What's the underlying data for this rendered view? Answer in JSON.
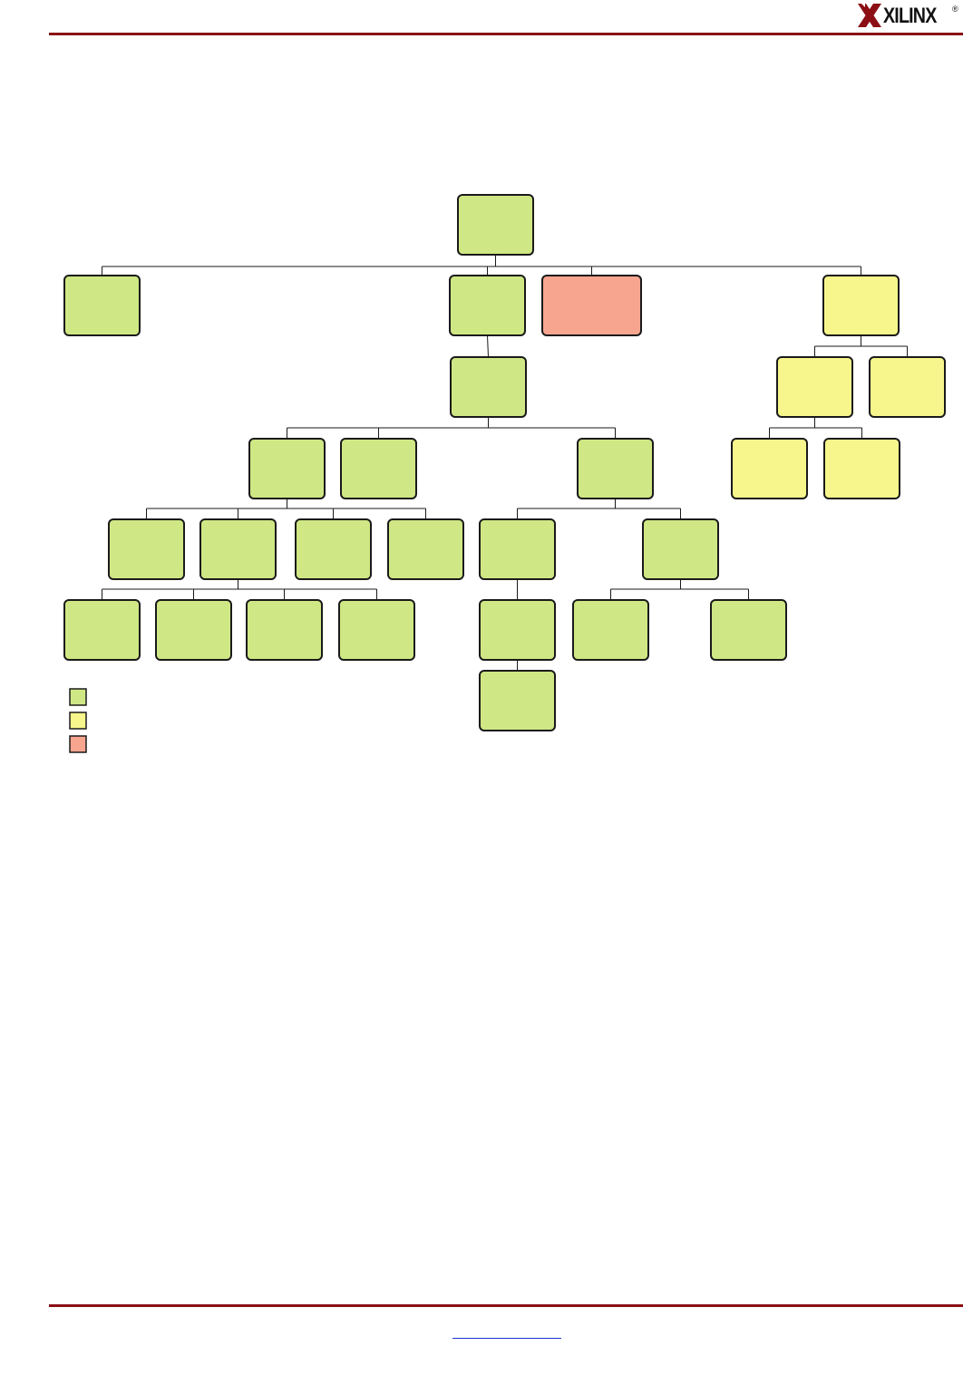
{
  "brand": {
    "logo_text": "XILINX",
    "logo_mark": "®",
    "rule_color": "#8b0f14"
  },
  "colors": {
    "green": "#cfe784",
    "yellow": "#f7f68c",
    "salmon": "#f7a58f",
    "line": "#1a1a1a"
  },
  "diagram": {
    "nodes": [
      {
        "id": "root",
        "color": "green",
        "label": ""
      },
      {
        "id": "l1-a",
        "color": "green",
        "label": ""
      },
      {
        "id": "l1-b",
        "color": "green",
        "label": ""
      },
      {
        "id": "l1-c",
        "color": "salmon",
        "label": ""
      },
      {
        "id": "l1-d",
        "color": "yellow",
        "label": ""
      },
      {
        "id": "l2-b1",
        "color": "green",
        "label": ""
      },
      {
        "id": "l2-d1",
        "color": "yellow",
        "label": ""
      },
      {
        "id": "l2-d2",
        "color": "yellow",
        "label": ""
      },
      {
        "id": "l3-b1",
        "color": "green",
        "label": ""
      },
      {
        "id": "l3-b2",
        "color": "green",
        "label": ""
      },
      {
        "id": "l3-b3",
        "color": "green",
        "label": ""
      },
      {
        "id": "l3-d1",
        "color": "yellow",
        "label": ""
      },
      {
        "id": "l3-d2",
        "color": "yellow",
        "label": ""
      },
      {
        "id": "l4-1",
        "color": "green",
        "label": ""
      },
      {
        "id": "l4-2",
        "color": "green",
        "label": ""
      },
      {
        "id": "l4-3",
        "color": "green",
        "label": ""
      },
      {
        "id": "l4-4",
        "color": "green",
        "label": ""
      },
      {
        "id": "l4-5",
        "color": "green",
        "label": ""
      },
      {
        "id": "l4-6",
        "color": "green",
        "label": ""
      },
      {
        "id": "l5-1",
        "color": "green",
        "label": ""
      },
      {
        "id": "l5-2",
        "color": "green",
        "label": ""
      },
      {
        "id": "l5-3",
        "color": "green",
        "label": ""
      },
      {
        "id": "l5-4",
        "color": "green",
        "label": ""
      },
      {
        "id": "l5-5",
        "color": "green",
        "label": ""
      },
      {
        "id": "l5-6",
        "color": "green",
        "label": ""
      },
      {
        "id": "l5-7",
        "color": "green",
        "label": ""
      },
      {
        "id": "l6-1",
        "color": "green",
        "label": ""
      }
    ],
    "edges": [
      [
        "root",
        "l1-a"
      ],
      [
        "root",
        "l1-b"
      ],
      [
        "root",
        "l1-c"
      ],
      [
        "root",
        "l1-d"
      ],
      [
        "l1-b",
        "l2-b1"
      ],
      [
        "l1-d",
        "l2-d1"
      ],
      [
        "l1-d",
        "l2-d2"
      ],
      [
        "l2-b1",
        "l3-b1"
      ],
      [
        "l2-b1",
        "l3-b2"
      ],
      [
        "l2-b1",
        "l3-b3"
      ],
      [
        "l2-d1",
        "l3-d1"
      ],
      [
        "l2-d1",
        "l3-d2"
      ],
      [
        "l3-b1",
        "l4-1"
      ],
      [
        "l3-b1",
        "l4-2"
      ],
      [
        "l3-b1",
        "l4-3"
      ],
      [
        "l3-b1",
        "l4-4"
      ],
      [
        "l3-b3",
        "l4-5"
      ],
      [
        "l3-b3",
        "l4-6"
      ],
      [
        "l4-2",
        "l5-1"
      ],
      [
        "l4-2",
        "l5-2"
      ],
      [
        "l4-2",
        "l5-3"
      ],
      [
        "l4-2",
        "l5-4"
      ],
      [
        "l4-5",
        "l5-5"
      ],
      [
        "l4-6",
        "l5-6"
      ],
      [
        "l4-6",
        "l5-7"
      ],
      [
        "l5-5",
        "l6-1"
      ]
    ]
  },
  "legend": [
    {
      "color": "green",
      "label": ""
    },
    {
      "color": "yellow",
      "label": ""
    },
    {
      "color": "salmon",
      "label": ""
    }
  ],
  "footer": {
    "link_text": ""
  }
}
